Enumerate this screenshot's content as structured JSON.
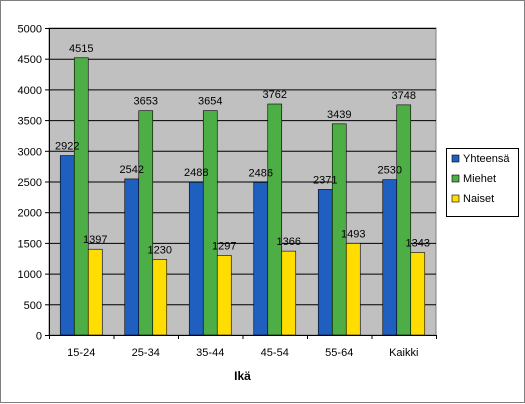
{
  "chart_data": {
    "type": "bar",
    "title": "",
    "xlabel": "Ikä",
    "ylabel": "",
    "ylim": [
      0,
      5000
    ],
    "yticks": [
      0,
      500,
      1000,
      1500,
      2000,
      2500,
      3000,
      3500,
      4000,
      4500,
      5000
    ],
    "grid": true,
    "legend_position": "right",
    "plot_background": "#c0c0c0",
    "categories": [
      "15-24",
      "25-34",
      "35-44",
      "45-54",
      "55-64",
      "Kaikki"
    ],
    "series": [
      {
        "name": "Yhteensä",
        "color": "#1f5fbf",
        "values": [
          2922,
          2542,
          2488,
          2486,
          2371,
          2530
        ]
      },
      {
        "name": "Miehet",
        "color": "#4cae44",
        "values": [
          4515,
          3653,
          3654,
          3762,
          3439,
          3748
        ]
      },
      {
        "name": "Naiset",
        "color": "#ffdd00",
        "values": [
          1397,
          1230,
          1297,
          1366,
          1493,
          1343
        ]
      }
    ]
  }
}
